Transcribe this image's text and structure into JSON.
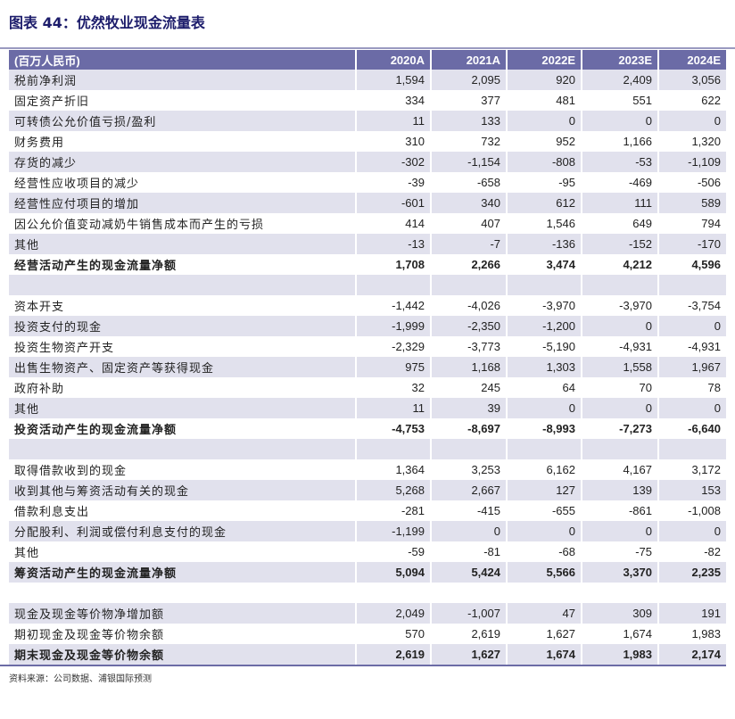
{
  "title": "图表 44：优然牧业现金流量表",
  "header": {
    "unit": "(百万人民币)",
    "years": [
      "2020A",
      "2021A",
      "2022E",
      "2023E",
      "2024E"
    ]
  },
  "rows": [
    {
      "label": "税前净利润",
      "values": [
        "1,594",
        "2,095",
        "920",
        "2,409",
        "3,056"
      ]
    },
    {
      "label": "固定资产折旧",
      "values": [
        "334",
        "377",
        "481",
        "551",
        "622"
      ]
    },
    {
      "label": "可转债公允价值亏损/盈利",
      "values": [
        "11",
        "133",
        "0",
        "0",
        "0"
      ]
    },
    {
      "label": "财务费用",
      "values": [
        "310",
        "732",
        "952",
        "1,166",
        "1,320"
      ]
    },
    {
      "label": "存货的减少",
      "values": [
        "-302",
        "-1,154",
        "-808",
        "-53",
        "-1,109"
      ]
    },
    {
      "label": "经营性应收项目的减少",
      "values": [
        "-39",
        "-658",
        "-95",
        "-469",
        "-506"
      ]
    },
    {
      "label": "经营性应付项目的增加",
      "values": [
        "-601",
        "340",
        "612",
        "111",
        "589"
      ]
    },
    {
      "label": "因公允价值变动减奶牛销售成本而产生的亏损",
      "values": [
        "414",
        "407",
        "1,546",
        "649",
        "794"
      ]
    },
    {
      "label": "其他",
      "values": [
        "-13",
        "-7",
        "-136",
        "-152",
        "-170"
      ]
    },
    {
      "label": "经营活动产生的现金流量净额",
      "values": [
        "1,708",
        "2,266",
        "3,474",
        "4,212",
        "4,596"
      ],
      "bold": true
    },
    {
      "label": "",
      "values": [
        "",
        "",
        "",
        "",
        ""
      ]
    },
    {
      "label": "资本开支",
      "values": [
        "-1,442",
        "-4,026",
        "-3,970",
        "-3,970",
        "-3,754"
      ]
    },
    {
      "label": "投资支付的现金",
      "values": [
        "-1,999",
        "-2,350",
        "-1,200",
        "0",
        "0"
      ]
    },
    {
      "label": "投资生物资产开支",
      "values": [
        "-2,329",
        "-3,773",
        "-5,190",
        "-4,931",
        "-4,931"
      ]
    },
    {
      "label": "出售生物资产、固定资产等获得现金",
      "values": [
        "975",
        "1,168",
        "1,303",
        "1,558",
        "1,967"
      ]
    },
    {
      "label": "政府补助",
      "values": [
        "32",
        "245",
        "64",
        "70",
        "78"
      ]
    },
    {
      "label": "其他",
      "values": [
        "11",
        "39",
        "0",
        "0",
        "0"
      ]
    },
    {
      "label": "投资活动产生的现金流量净额",
      "values": [
        "-4,753",
        "-8,697",
        "-8,993",
        "-7,273",
        "-6,640"
      ],
      "bold": true
    },
    {
      "label": "",
      "values": [
        "",
        "",
        "",
        "",
        ""
      ]
    },
    {
      "label": "取得借款收到的现金",
      "values": [
        "1,364",
        "3,253",
        "6,162",
        "4,167",
        "3,172"
      ]
    },
    {
      "label": "收到其他与筹资活动有关的现金",
      "values": [
        "5,268",
        "2,667",
        "127",
        "139",
        "153"
      ]
    },
    {
      "label": "借款利息支出",
      "values": [
        "-281",
        "-415",
        "-655",
        "-861",
        "-1,008"
      ]
    },
    {
      "label": "分配股利、利润或偿付利息支付的现金",
      "values": [
        "-1,199",
        "0",
        "0",
        "0",
        "0"
      ]
    },
    {
      "label": "其他",
      "values": [
        "-59",
        "-81",
        "-68",
        "-75",
        "-82"
      ]
    },
    {
      "label": "筹资活动产生的现金流量净额",
      "values": [
        "5,094",
        "5,424",
        "5,566",
        "3,370",
        "2,235"
      ],
      "bold": true
    },
    {
      "label": "",
      "values": [
        "",
        "",
        "",
        "",
        ""
      ]
    },
    {
      "label": "现金及现金等价物净增加额",
      "values": [
        "2,049",
        "-1,007",
        "47",
        "309",
        "191"
      ]
    },
    {
      "label": "期初现金及现金等价物余额",
      "values": [
        "570",
        "2,619",
        "1,627",
        "1,674",
        "1,983"
      ]
    },
    {
      "label": "期末现金及现金等价物余额",
      "values": [
        "2,619",
        "1,627",
        "1,674",
        "1,983",
        "2,174"
      ],
      "bold": true
    }
  ],
  "source": "资料来源：公司数据、浦银国际预测",
  "colors": {
    "header_bg": "#6b6ba6",
    "shade": "#e1e1ed",
    "title": "#1c1c6b"
  }
}
